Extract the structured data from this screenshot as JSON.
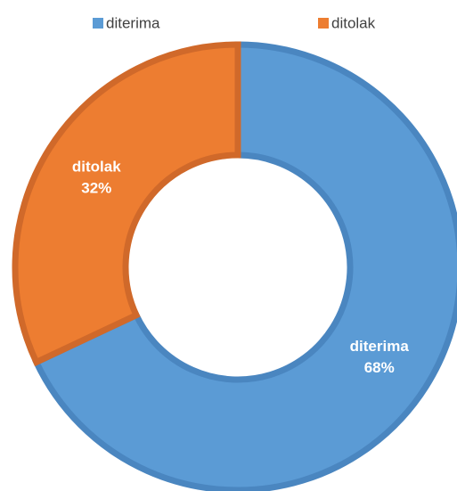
{
  "chart_data": {
    "type": "donut",
    "categories": [
      "diterima",
      "ditolak"
    ],
    "values": [
      68,
      32
    ],
    "value_labels": [
      "68%",
      "32%"
    ],
    "colors": [
      "#5b9bd5",
      "#ed7d31"
    ],
    "legend": "top"
  }
}
